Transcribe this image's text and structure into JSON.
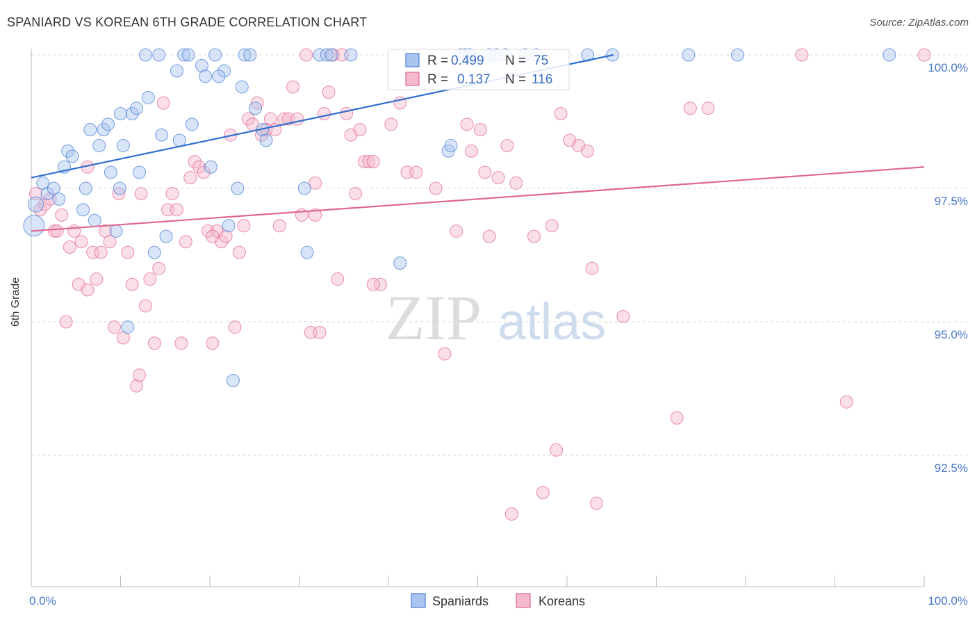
{
  "header": {
    "title": "SPANIARD VS KOREAN 6TH GRADE CORRELATION CHART",
    "source": "Source: ZipAtlas.com"
  },
  "watermark": {
    "zip": "ZIP",
    "atlas": "atlas"
  },
  "colors": {
    "blue": "#4a7fd4",
    "blue_fill": "#a9c4ee",
    "blue_text": "#3a6fc4",
    "pink": "#e06890",
    "pink_fill": "#f5b8cc",
    "pink_text": "#3a6fc4",
    "axis_text": "#4a78c8"
  },
  "stats": {
    "spaniards": {
      "r_label": "R =",
      "r_value": "0.499",
      "n_label": "N =",
      "n_value": "75"
    },
    "koreans": {
      "r_label": "R =",
      "r_value": "0.137",
      "n_label": "N =",
      "n_value": "116"
    }
  },
  "legend": {
    "spaniards": "Spaniards",
    "koreans": "Koreans"
  },
  "chart_data": {
    "type": "scatter",
    "title": "SPANIARD VS KOREAN 6TH GRADE CORRELATION CHART",
    "xlabel": "",
    "ylabel": "6th Grade",
    "xlim": [
      0,
      100
    ],
    "ylim": [
      90.3,
      100.3
    ],
    "x_tick_labels": [
      "0.0%",
      "100.0%"
    ],
    "y_ticks": [
      {
        "value": 100.0,
        "label": "100.0%"
      },
      {
        "value": 97.5,
        "label": "97.5%"
      },
      {
        "value": 95.0,
        "label": "95.0%"
      },
      {
        "value": 92.5,
        "label": "92.5%"
      }
    ],
    "grid": true,
    "legend_position": "bottom-center",
    "series": [
      {
        "name": "Spaniards",
        "color": "#4a7fd4",
        "trend": {
          "x": [
            0,
            65.2
          ],
          "y": [
            97.7,
            100.0
          ]
        },
        "points": [
          [
            0.3,
            96.8,
            14
          ],
          [
            0.5,
            97.2,
            10
          ],
          [
            1.3,
            97.6,
            8
          ],
          [
            1.8,
            97.4,
            8
          ],
          [
            2.5,
            97.5,
            8
          ],
          [
            3.1,
            97.3,
            8
          ],
          [
            3.7,
            97.9,
            8
          ],
          [
            4.1,
            98.2,
            8
          ],
          [
            4.6,
            98.1,
            8
          ],
          [
            5.8,
            97.1,
            8
          ],
          [
            6.1,
            97.5,
            8
          ],
          [
            6.6,
            98.6,
            8
          ],
          [
            7.1,
            96.9,
            8
          ],
          [
            7.6,
            98.3,
            8
          ],
          [
            8.1,
            98.6,
            8
          ],
          [
            8.6,
            98.7,
            8
          ],
          [
            8.9,
            97.8,
            8
          ],
          [
            9.5,
            96.7,
            8
          ],
          [
            9.9,
            97.5,
            8
          ],
          [
            10.3,
            98.3,
            8
          ],
          [
            10.8,
            94.9,
            8
          ],
          [
            11.3,
            98.9,
            8
          ],
          [
            11.8,
            99.0,
            8
          ],
          [
            12.1,
            97.8,
            8
          ],
          [
            12.8,
            100.0,
            8
          ],
          [
            13.1,
            99.2,
            8
          ],
          [
            13.8,
            96.3,
            8
          ],
          [
            14.3,
            100.0,
            8
          ],
          [
            14.6,
            98.5,
            8
          ],
          [
            15.1,
            96.6,
            8
          ],
          [
            16.3,
            99.7,
            8
          ],
          [
            16.6,
            98.4,
            8
          ],
          [
            17.1,
            100.0,
            8
          ],
          [
            17.6,
            100.0,
            8
          ],
          [
            18.0,
            98.7,
            8
          ],
          [
            19.1,
            99.8,
            8
          ],
          [
            19.5,
            99.6,
            8
          ],
          [
            20.1,
            97.9,
            8
          ],
          [
            20.6,
            100.0,
            8
          ],
          [
            21.6,
            99.7,
            8
          ],
          [
            22.1,
            96.8,
            8
          ],
          [
            22.6,
            93.9,
            8
          ],
          [
            23.1,
            97.5,
            8
          ],
          [
            23.6,
            99.4,
            8
          ],
          [
            23.9,
            100.0,
            8
          ],
          [
            24.5,
            100.0,
            8
          ],
          [
            25.1,
            99.0,
            8
          ],
          [
            25.9,
            98.6,
            8
          ],
          [
            26.3,
            98.4,
            8
          ],
          [
            30.6,
            97.5,
            8
          ],
          [
            30.9,
            96.3,
            8
          ],
          [
            32.3,
            100.0,
            8
          ],
          [
            33.1,
            100.0,
            8
          ],
          [
            33.6,
            100.0,
            8
          ],
          [
            35.8,
            100.0,
            8
          ],
          [
            41.3,
            96.1,
            8
          ],
          [
            46.7,
            98.2,
            8
          ],
          [
            47.0,
            98.3,
            8
          ],
          [
            48.1,
            100.0,
            8
          ],
          [
            48.6,
            100.0,
            8
          ],
          [
            49.1,
            100.0,
            8
          ],
          [
            51.3,
            100.0,
            8
          ],
          [
            52.1,
            100.0,
            8
          ],
          [
            53.1,
            100.0,
            8
          ],
          [
            55.3,
            100.0,
            8
          ],
          [
            56.6,
            100.0,
            8
          ],
          [
            62.3,
            100.0,
            8
          ],
          [
            65.1,
            100.0,
            8
          ],
          [
            73.6,
            100.0,
            8
          ],
          [
            79.1,
            100.0,
            8
          ],
          [
            96.1,
            100.0,
            8
          ],
          [
            21.0,
            99.6,
            8
          ],
          [
            10.0,
            98.9,
            8
          ]
        ]
      },
      {
        "name": "Koreans",
        "color": "#e06890",
        "trend": {
          "x": [
            0,
            100
          ],
          "y": [
            96.7,
            97.9
          ]
        },
        "points": [
          [
            0.5,
            97.4,
            8
          ],
          [
            1.0,
            97.1,
            8
          ],
          [
            1.5,
            97.2,
            8
          ],
          [
            2.1,
            97.3,
            8
          ],
          [
            2.6,
            96.7,
            8
          ],
          [
            2.9,
            96.7,
            8
          ],
          [
            3.4,
            97.0,
            8
          ],
          [
            3.9,
            95.0,
            8
          ],
          [
            4.3,
            96.4,
            8
          ],
          [
            4.8,
            96.7,
            8
          ],
          [
            5.3,
            95.7,
            8
          ],
          [
            5.6,
            96.5,
            8
          ],
          [
            6.3,
            95.6,
            8
          ],
          [
            6.9,
            96.3,
            8
          ],
          [
            7.3,
            95.8,
            8
          ],
          [
            7.8,
            96.3,
            8
          ],
          [
            8.3,
            96.7,
            8
          ],
          [
            8.8,
            96.5,
            8
          ],
          [
            9.3,
            94.9,
            8
          ],
          [
            9.8,
            97.4,
            8
          ],
          [
            10.3,
            94.7,
            8
          ],
          [
            10.8,
            96.3,
            8
          ],
          [
            11.3,
            95.7,
            8
          ],
          [
            11.8,
            93.8,
            8
          ],
          [
            12.1,
            94.0,
            8
          ],
          [
            12.8,
            95.3,
            8
          ],
          [
            13.3,
            95.8,
            8
          ],
          [
            13.8,
            94.6,
            8
          ],
          [
            14.3,
            96.0,
            8
          ],
          [
            14.8,
            99.1,
            8
          ],
          [
            15.3,
            97.1,
            8
          ],
          [
            15.8,
            97.4,
            8
          ],
          [
            16.3,
            97.1,
            8
          ],
          [
            16.8,
            94.6,
            8
          ],
          [
            17.3,
            96.5,
            8
          ],
          [
            17.8,
            97.7,
            8
          ],
          [
            18.3,
            98.0,
            8
          ],
          [
            18.8,
            97.9,
            8
          ],
          [
            19.3,
            97.8,
            8
          ],
          [
            19.8,
            96.7,
            8
          ],
          [
            20.3,
            94.6,
            8
          ],
          [
            20.8,
            96.7,
            8
          ],
          [
            21.3,
            96.5,
            8
          ],
          [
            21.8,
            96.6,
            8
          ],
          [
            22.3,
            98.5,
            8
          ],
          [
            22.8,
            94.9,
            8
          ],
          [
            23.3,
            96.3,
            8
          ],
          [
            23.8,
            96.8,
            8
          ],
          [
            24.3,
            98.8,
            8
          ],
          [
            24.8,
            98.7,
            8
          ],
          [
            25.3,
            99.1,
            8
          ],
          [
            25.8,
            98.5,
            8
          ],
          [
            26.3,
            98.6,
            8
          ],
          [
            26.8,
            98.8,
            8
          ],
          [
            27.3,
            98.6,
            8
          ],
          [
            27.8,
            96.8,
            8
          ],
          [
            28.3,
            98.8,
            8
          ],
          [
            28.8,
            98.8,
            8
          ],
          [
            29.3,
            99.4,
            8
          ],
          [
            29.8,
            98.8,
            8
          ],
          [
            30.3,
            97.0,
            8
          ],
          [
            30.8,
            100.0,
            8
          ],
          [
            31.3,
            94.8,
            8
          ],
          [
            31.8,
            97.6,
            8
          ],
          [
            32.3,
            94.8,
            8
          ],
          [
            32.8,
            98.9,
            8
          ],
          [
            33.3,
            99.3,
            8
          ],
          [
            33.8,
            100.0,
            8
          ],
          [
            34.3,
            95.8,
            8
          ],
          [
            34.8,
            100.0,
            8
          ],
          [
            35.3,
            98.9,
            8
          ],
          [
            35.8,
            98.5,
            8
          ],
          [
            36.3,
            97.4,
            8
          ],
          [
            36.8,
            98.6,
            8
          ],
          [
            37.3,
            98.0,
            8
          ],
          [
            37.8,
            98.0,
            8
          ],
          [
            38.3,
            98.0,
            8
          ],
          [
            39.1,
            95.7,
            8
          ],
          [
            40.3,
            98.7,
            8
          ],
          [
            41.3,
            99.1,
            8
          ],
          [
            42.1,
            97.8,
            8
          ],
          [
            43.1,
            97.8,
            8
          ],
          [
            45.3,
            97.5,
            8
          ],
          [
            46.3,
            94.4,
            8
          ],
          [
            47.6,
            96.7,
            8
          ],
          [
            48.8,
            98.7,
            8
          ],
          [
            49.3,
            98.2,
            8
          ],
          [
            50.3,
            98.6,
            8
          ],
          [
            50.8,
            97.8,
            8
          ],
          [
            51.3,
            96.6,
            8
          ],
          [
            52.3,
            97.7,
            8
          ],
          [
            53.3,
            98.3,
            8
          ],
          [
            54.3,
            97.6,
            8
          ],
          [
            56.3,
            96.6,
            8
          ],
          [
            58.3,
            96.8,
            8
          ],
          [
            58.8,
            92.6,
            8
          ],
          [
            59.3,
            98.9,
            8
          ],
          [
            60.3,
            98.4,
            8
          ],
          [
            61.3,
            98.3,
            8
          ],
          [
            62.3,
            98.2,
            8
          ],
          [
            62.8,
            96.0,
            8
          ],
          [
            63.3,
            91.6,
            8
          ],
          [
            66.3,
            95.1,
            8
          ],
          [
            72.3,
            93.2,
            8
          ],
          [
            73.8,
            99.0,
            8
          ],
          [
            75.8,
            99.0,
            8
          ],
          [
            86.3,
            100.0,
            8
          ],
          [
            91.3,
            93.5,
            8
          ],
          [
            100.0,
            100.0,
            8
          ],
          [
            57.3,
            91.8,
            8
          ],
          [
            53.8,
            91.4,
            8
          ],
          [
            31.8,
            97.0,
            8
          ],
          [
            20.3,
            96.6,
            8
          ],
          [
            12.3,
            97.4,
            8
          ],
          [
            6.3,
            97.9,
            8
          ],
          [
            38.3,
            95.7,
            8
          ]
        ]
      }
    ]
  }
}
